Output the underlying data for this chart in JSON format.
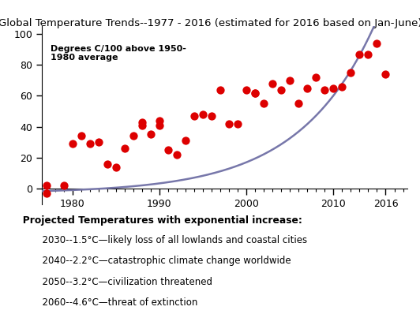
{
  "title": "Global Temperature Trends--1977 - 2016 (estimated for 2016 based on Jan-June)",
  "scatter_x": [
    1977,
    1977,
    1979,
    1980,
    1981,
    1982,
    1983,
    1984,
    1985,
    1986,
    1987,
    1988,
    1988,
    1989,
    1990,
    1990,
    1991,
    1992,
    1993,
    1994,
    1995,
    1996,
    1997,
    1998,
    1999,
    2000,
    2001,
    2001,
    2002,
    2003,
    2004,
    2005,
    2006,
    2007,
    2008,
    2009,
    2010,
    2011,
    2012,
    2013,
    2014,
    2015,
    2016
  ],
  "scatter_y": [
    2,
    -3,
    2,
    29,
    34,
    29,
    30,
    16,
    14,
    26,
    34,
    41,
    43,
    35,
    44,
    41,
    25,
    22,
    31,
    47,
    48,
    47,
    64,
    42,
    42,
    64,
    62,
    62,
    55,
    68,
    64,
    70,
    55,
    65,
    72,
    64,
    65,
    66,
    75,
    87,
    87,
    94,
    74
  ],
  "scatter_color": "#dd0000",
  "scatter_size": 55,
  "curve_color": "#7777aa",
  "curve_lw": 1.8,
  "xlim": [
    1976.5,
    2018.5
  ],
  "ylim": [
    -10,
    105
  ],
  "xticks": [
    1980,
    1990,
    2000,
    2010,
    2016
  ],
  "yticks": [
    0,
    20,
    40,
    60,
    80,
    100
  ],
  "title_fontsize": 9.5,
  "ylabel_text": "Degrees C/100 above 1950-\n1980 average",
  "bottom_text_title": "   Projected Temperatures with exponential increase:",
  "bottom_lines": [
    "          2030--1.5°C—likely loss of all lowlands and coastal cities",
    "          2040--2.2°C—catastrophic climate change worldwide",
    "          2050--3.2°C—civilization threatened",
    "          2060--4.6°C—threat of extinction"
  ],
  "curve_x0": 1983.5,
  "curve_a": 3.0,
  "curve_b": 0.115
}
